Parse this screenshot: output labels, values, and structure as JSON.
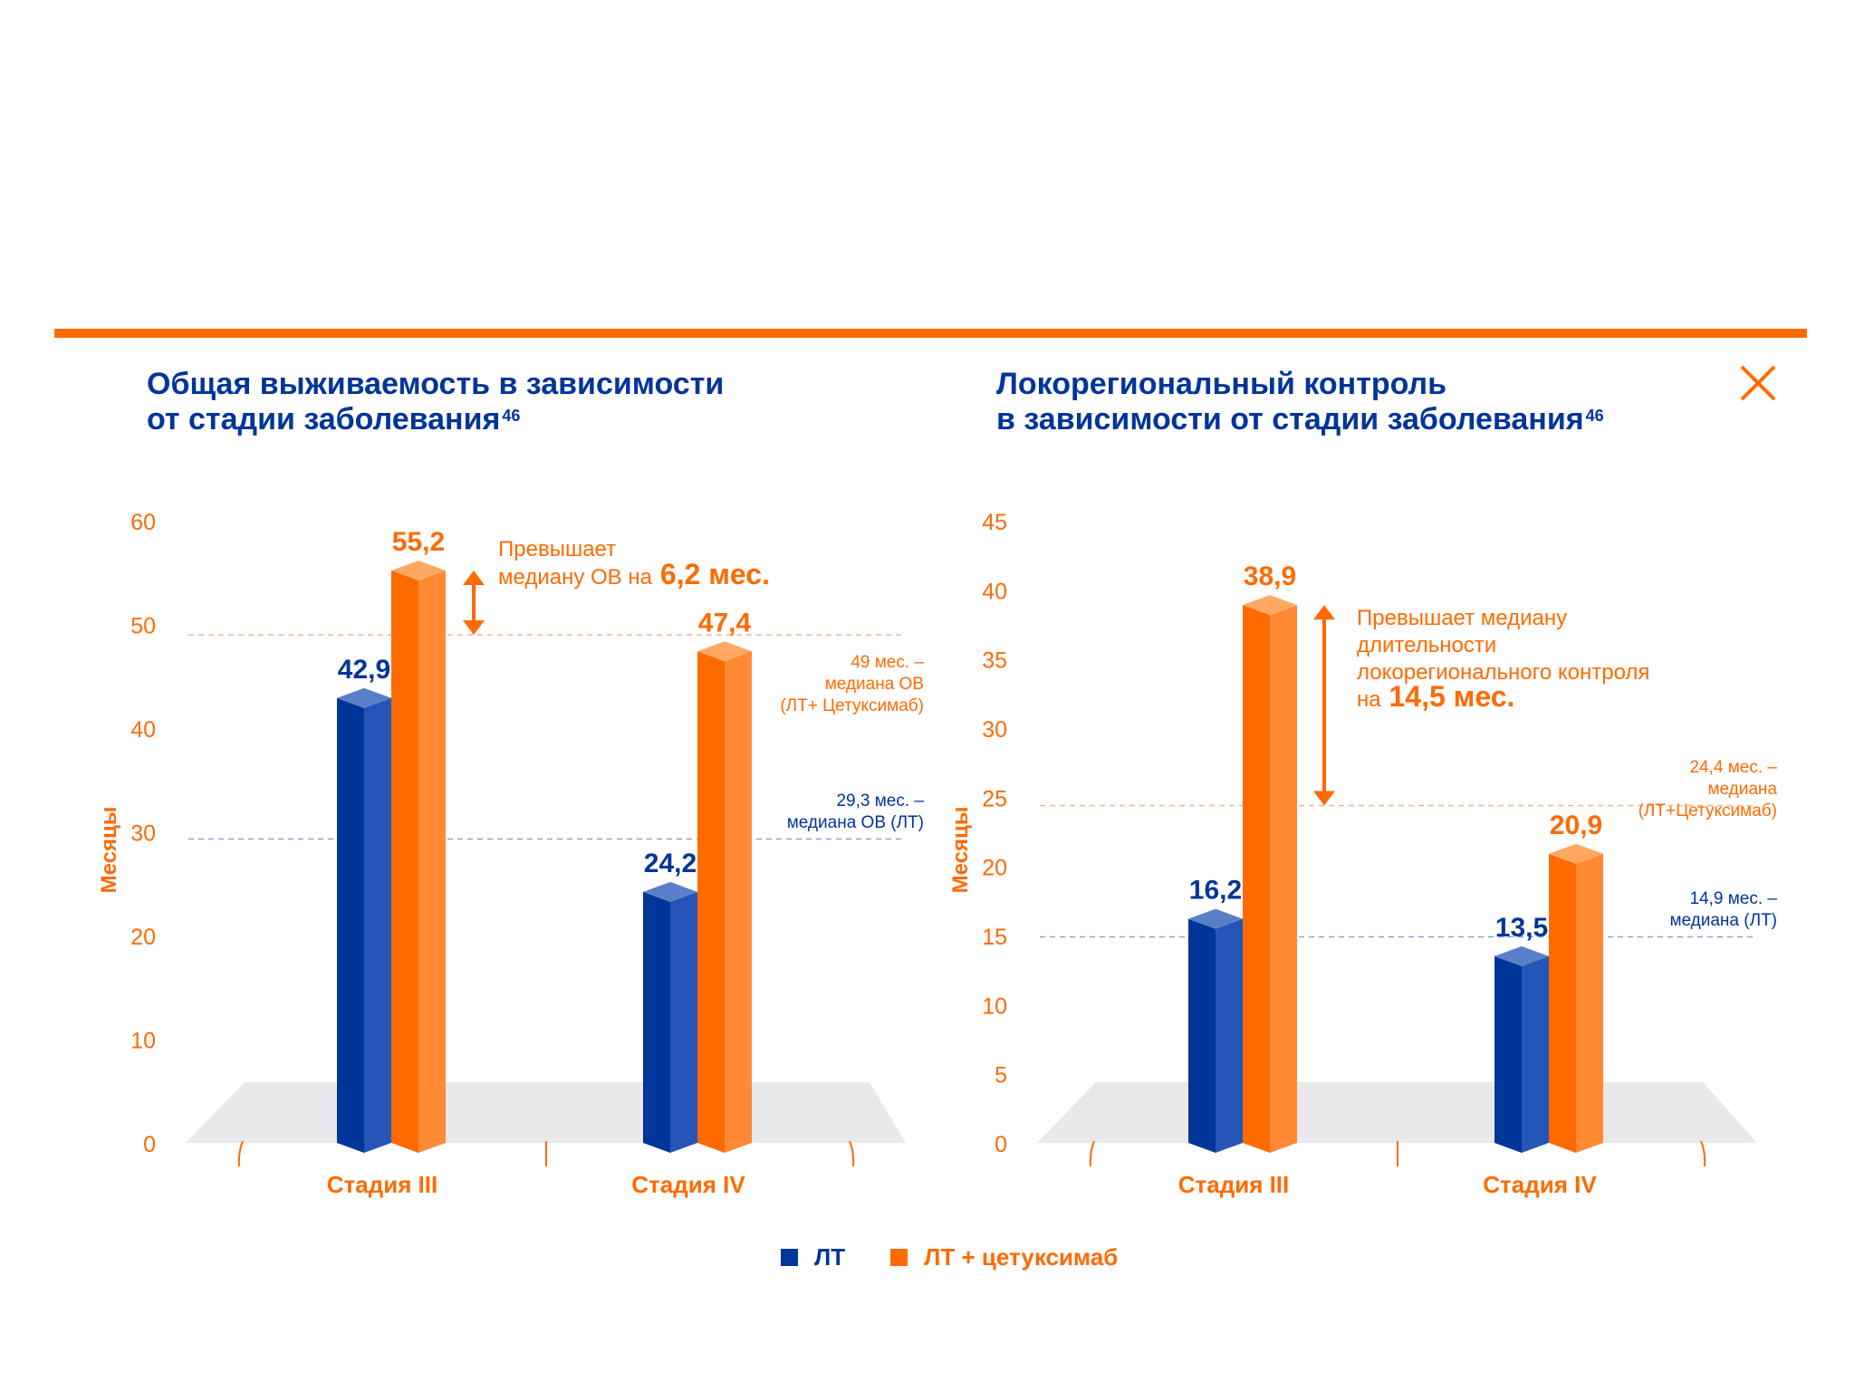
{
  "colors": {
    "lt": "#00359a",
    "lt_side": "#2655b8",
    "lt_top": "#5a7fc9",
    "cet": "#ff6a00",
    "cet_side": "#ff8a33",
    "cet_top": "#ffa862",
    "accent": "#ff6a00",
    "floor": "#e9e9ec"
  },
  "close_icon": "close-x-icon",
  "legend": [
    {
      "label": "ЛТ",
      "color": "#00359a"
    },
    {
      "label": "ЛТ + цетуксимаб",
      "color": "#ff6a00"
    }
  ],
  "chart_data": [
    {
      "type": "bar",
      "title": [
        "Общая выживаемость в зависимости",
        "от стадии заболевания"
      ],
      "title_ref": "46",
      "ylabel": "Месяцы",
      "ylim": [
        0,
        60
      ],
      "yticks": [
        "0",
        "10",
        "20",
        "30",
        "40",
        "50",
        "60"
      ],
      "categories": [
        "Стадия III",
        "Стадия IV"
      ],
      "series": [
        {
          "name": "ЛТ",
          "values": [
            42.9,
            24.2
          ],
          "labels": [
            "42,9",
            "24,2"
          ]
        },
        {
          "name": "ЛТ + цетуксимаб",
          "values": [
            55.2,
            47.4
          ],
          "labels": [
            "55,2",
            "47,4"
          ]
        }
      ],
      "reference_lines": [
        {
          "value": 49,
          "color": "orange",
          "text": [
            "49 мес. –",
            "медиана ОВ",
            "(ЛТ+ Цетуксимаб)"
          ]
        },
        {
          "value": 29.3,
          "color": "blue",
          "text": [
            "29,3 мес. –",
            "медиана ОВ (ЛТ)"
          ]
        }
      ],
      "annotation": {
        "lines": [
          "Превышает",
          "медиану ОВ на"
        ],
        "highlight": "6,2 мес.",
        "from": 49,
        "to": 55.2
      }
    },
    {
      "type": "bar",
      "title": [
        "Локорегиональный контроль",
        "в зависимости от стадии заболевания"
      ],
      "title_ref": "46",
      "ylabel": "Месяцы",
      "ylim": [
        0,
        45
      ],
      "yticks": [
        "0",
        "5",
        "10",
        "15",
        "20",
        "25",
        "30",
        "35",
        "40",
        "45"
      ],
      "categories": [
        "Стадия III",
        "Стадия IV"
      ],
      "series": [
        {
          "name": "ЛТ",
          "values": [
            16.2,
            13.5
          ],
          "labels": [
            "16,2",
            "13,5"
          ]
        },
        {
          "name": "ЛТ + цетуксимаб",
          "values": [
            38.9,
            20.9
          ],
          "labels": [
            "38,9",
            "20,9"
          ]
        }
      ],
      "reference_lines": [
        {
          "value": 24.4,
          "color": "orange",
          "text": [
            "24,4 мес. –",
            "медиана",
            "(ЛТ+Цетуксимаб)"
          ]
        },
        {
          "value": 14.9,
          "color": "blue",
          "text": [
            "14,9 мес. –",
            "медиана (ЛТ)"
          ]
        }
      ],
      "annotation": {
        "lines": [
          "Превышает медиану",
          "длительности",
          "локорегионального контроля",
          "на"
        ],
        "highlight": "14,5 мес.",
        "from": 24.4,
        "to": 38.9
      }
    }
  ]
}
